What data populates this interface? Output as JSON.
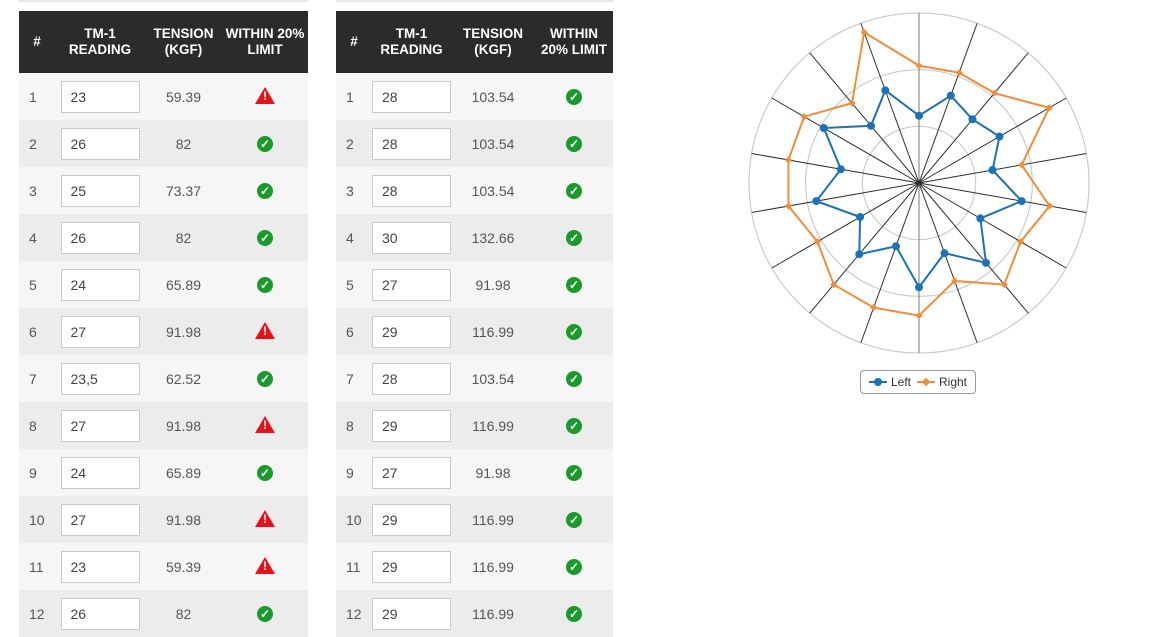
{
  "tables": [
    {
      "headers": {
        "num": "#",
        "reading": "TM-1 READING",
        "tension": "TENSION (KGF)",
        "limit": "WITHIN 20% LIMIT"
      },
      "rows": [
        {
          "num": "1",
          "reading": "23",
          "tension": "59.39",
          "status": "warning"
        },
        {
          "num": "2",
          "reading": "26",
          "tension": "82",
          "status": "ok"
        },
        {
          "num": "3",
          "reading": "25",
          "tension": "73.37",
          "status": "ok"
        },
        {
          "num": "4",
          "reading": "26",
          "tension": "82",
          "status": "ok"
        },
        {
          "num": "5",
          "reading": "24",
          "tension": "65.89",
          "status": "ok"
        },
        {
          "num": "6",
          "reading": "27",
          "tension": "91.98",
          "status": "warning"
        },
        {
          "num": "7",
          "reading": "23,5",
          "tension": "62.52",
          "status": "ok"
        },
        {
          "num": "8",
          "reading": "27",
          "tension": "91.98",
          "status": "warning"
        },
        {
          "num": "9",
          "reading": "24",
          "tension": "65.89",
          "status": "ok"
        },
        {
          "num": "10",
          "reading": "27",
          "tension": "91.98",
          "status": "warning"
        },
        {
          "num": "11",
          "reading": "23",
          "tension": "59.39",
          "status": "warning"
        },
        {
          "num": "12",
          "reading": "26",
          "tension": "82",
          "status": "ok"
        }
      ]
    },
    {
      "headers": {
        "num": "#",
        "reading": "TM-1 READING",
        "tension": "TENSION (KGF)",
        "limit": "WITHIN 20% LIMIT"
      },
      "rows": [
        {
          "num": "1",
          "reading": "28",
          "tension": "103.54",
          "status": "ok"
        },
        {
          "num": "2",
          "reading": "28",
          "tension": "103.54",
          "status": "ok"
        },
        {
          "num": "3",
          "reading": "28",
          "tension": "103.54",
          "status": "ok"
        },
        {
          "num": "4",
          "reading": "30",
          "tension": "132.66",
          "status": "ok"
        },
        {
          "num": "5",
          "reading": "27",
          "tension": "91.98",
          "status": "ok"
        },
        {
          "num": "6",
          "reading": "29",
          "tension": "116.99",
          "status": "ok"
        },
        {
          "num": "7",
          "reading": "28",
          "tension": "103.54",
          "status": "ok"
        },
        {
          "num": "8",
          "reading": "29",
          "tension": "116.99",
          "status": "ok"
        },
        {
          "num": "9",
          "reading": "27",
          "tension": "91.98",
          "status": "ok"
        },
        {
          "num": "10",
          "reading": "29",
          "tension": "116.99",
          "status": "ok"
        },
        {
          "num": "11",
          "reading": "29",
          "tension": "116.99",
          "status": "ok"
        },
        {
          "num": "12",
          "reading": "29",
          "tension": "116.99",
          "status": "ok"
        }
      ]
    }
  ],
  "status_icons": {
    "ok": "check-circle-icon",
    "warning": "warning-triangle-icon"
  },
  "colors": {
    "ok": "#1a9a2a",
    "warning": "#e8111a",
    "header_bg": "#2b2b2b"
  },
  "chart_data": {
    "type": "radar",
    "axes_count": 18,
    "rlim": [
      0,
      150
    ],
    "rings": [
      50,
      100,
      150
    ],
    "grid": true,
    "legend": "bottom",
    "series": [
      {
        "name": "Left",
        "color": "#1a72b8",
        "values": [
          59.39,
          82,
          73.37,
          82,
          65.89,
          91.98,
          62.52,
          91.98,
          65.89,
          91.98,
          59.39,
          82,
          60,
          92,
          70,
          97,
          65.89,
          87
        ]
      },
      {
        "name": "Right",
        "color": "#f28c38",
        "values": [
          103.54,
          103.54,
          103.54,
          132.66,
          91.98,
          116.99,
          103.54,
          116.99,
          91.98,
          116.99,
          116.99,
          116.99,
          103.5,
          117,
          117,
          117,
          92,
          141.5
        ]
      }
    ]
  }
}
